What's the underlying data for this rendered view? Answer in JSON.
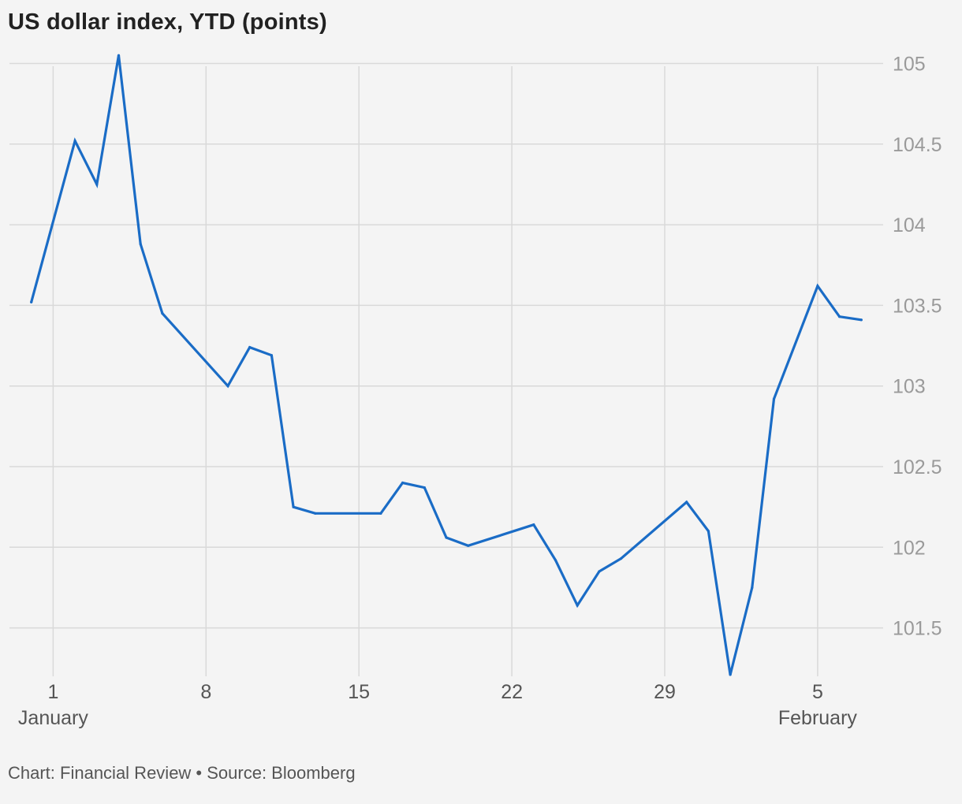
{
  "title": "US dollar index, YTD (points)",
  "footer": "Chart: Financial Review • Source: Bloomberg",
  "chart_data": {
    "type": "line",
    "title": "US dollar index, YTD (points)",
    "xlabel": "",
    "ylabel": "",
    "ylim": [
      101.2,
      105.1
    ],
    "xlim": [
      "2023-12-30",
      "2024-02-08"
    ],
    "y_ticks": [
      {
        "value": 105,
        "label": "105"
      },
      {
        "value": 104.5,
        "label": "104.5"
      },
      {
        "value": 104,
        "label": "104"
      },
      {
        "value": 103.5,
        "label": "103.5"
      },
      {
        "value": 103,
        "label": "103"
      },
      {
        "value": 102.5,
        "label": "102.5"
      },
      {
        "value": 102,
        "label": "102"
      },
      {
        "value": 101.5,
        "label": "101.5"
      }
    ],
    "x_ticks": [
      {
        "date": "2024-01-01",
        "label": "1"
      },
      {
        "date": "2024-01-08",
        "label": "8"
      },
      {
        "date": "2024-01-15",
        "label": "15"
      },
      {
        "date": "2024-01-22",
        "label": "22"
      },
      {
        "date": "2024-01-29",
        "label": "29"
      },
      {
        "date": "2024-02-05",
        "label": "5"
      }
    ],
    "months": [
      {
        "date": "2024-01-01",
        "label": "January"
      },
      {
        "date": "2024-02-05",
        "label": "February"
      }
    ],
    "grid": true,
    "y_axis_side": "right",
    "line_color": "#1a6cc6",
    "grid_color": "#d9d9d9",
    "series": [
      {
        "x": [
          "2023-12-31",
          "2024-01-02",
          "2024-01-03",
          "2024-01-04",
          "2024-01-05",
          "2024-01-06",
          "2024-01-09",
          "2024-01-10",
          "2024-01-11",
          "2024-01-12",
          "2024-01-13",
          "2024-01-16",
          "2024-01-17",
          "2024-01-18",
          "2024-01-19",
          "2024-01-20",
          "2024-01-23",
          "2024-01-24",
          "2024-01-25",
          "2024-01-26",
          "2024-01-27",
          "2024-01-30",
          "2024-01-31",
          "2024-02-01",
          "2024-02-02",
          "2024-02-03",
          "2024-02-05",
          "2024-02-06",
          "2024-02-07"
        ],
        "values": [
          103.52,
          104.52,
          104.25,
          105.05,
          103.88,
          103.45,
          103.0,
          103.24,
          103.19,
          102.25,
          102.21,
          102.21,
          102.4,
          102.37,
          102.06,
          102.01,
          102.14,
          101.92,
          101.64,
          101.85,
          101.93,
          102.28,
          102.1,
          101.21,
          101.75,
          102.92,
          103.62,
          103.43,
          103.41
        ]
      }
    ]
  }
}
